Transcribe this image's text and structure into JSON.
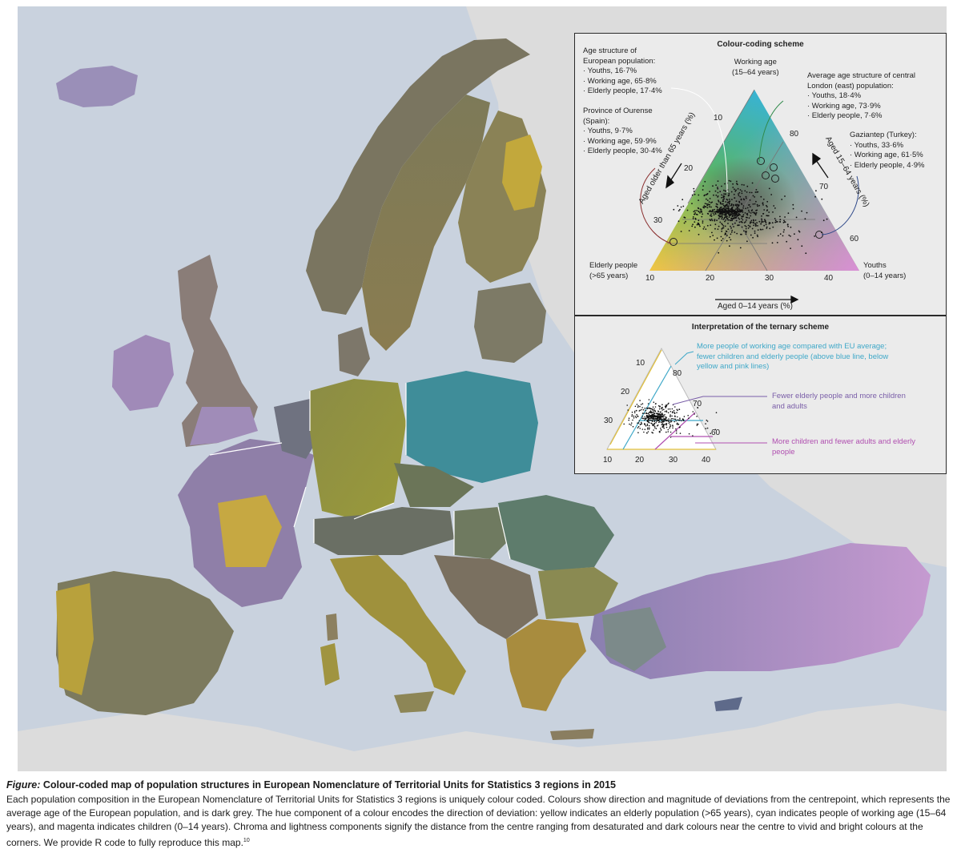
{
  "scheme": {
    "title": "Colour-coding scheme",
    "europe_note": [
      "Age structure of",
      "European population:",
      "· Youths, 16·7%",
      "· Working age, 65·8%",
      "· Elderly people, 17·4%"
    ],
    "ourense_note": [
      "Province of Ourense",
      "(Spain):",
      "· Youths, 9·7%",
      "· Working age, 59·9%",
      "· Elderly people, 30·4%"
    ],
    "london_note": [
      "Average age structure of central",
      "London (east) population:",
      "· Youths, 18·4%",
      "· Working age, 73·9%",
      "· Elderly people, 7·6%"
    ],
    "gaziantep_note": [
      "Gaziantep (Turkey):",
      "· Youths, 33·6%",
      "· Working age, 61·5%",
      "· Elderly people, 4·9%"
    ],
    "corner_top": [
      "Working age",
      "(15–64 years)"
    ],
    "corner_left": [
      "Elderly people",
      "(>65 years)"
    ],
    "corner_right": [
      "Youths",
      "(0–14 years)"
    ],
    "axis_bottom": "Aged 0–14 years (%)",
    "axis_left": "Aged older than 65 years (%)",
    "axis_right": "Aged 15–64 years (%)",
    "ticks_bottom": [
      "10",
      "20",
      "30",
      "40"
    ],
    "ticks_left": [
      "10",
      "20",
      "30"
    ],
    "ticks_right": [
      "80",
      "70",
      "60"
    ]
  },
  "interpretation": {
    "title": "Interpretation of the ternary scheme",
    "item1": [
      "More people of working age compared with EU average;",
      "fewer children and elderly people (above blue line, below",
      "yellow and pink lines)"
    ],
    "item2": [
      "Fewer elderly people and more children",
      "and adults"
    ],
    "item3": [
      "More children and fewer adults and elderly",
      "people"
    ],
    "ticks_bottom": [
      "10",
      "20",
      "30",
      "40"
    ],
    "ticks_left": [
      "10",
      "20",
      "30"
    ],
    "ticks_right": [
      "80",
      "70",
      "60"
    ],
    "color_item1": "#3fa8c8",
    "color_item2": "#7a5ea8",
    "color_item3": "#b04fb0"
  },
  "caption": {
    "label": "Figure:",
    "title": "Colour-coded map of population structures in European Nomenclature of Territorial Units for Statistics 3 regions in 2015",
    "body": "Each population composition in the European Nomenclature of Territorial Units for Statistics 3 regions is uniquely colour coded. Colours show direction and magnitude of deviations from the centrepoint, which represents the average age of the European population, and is dark grey. The hue component of a colour encodes the direction of deviation: yellow indicates an elderly population (>65 years), cyan indicates people of working age (15–64 years), and magenta indicates children (0–14 years). Chroma and lightness components signify the distance from the centre ranging from desaturated and dark colours near the centre to vivid and bright colours at the corners. We provide R code to fully reproduce this map.",
    "footnote": "10"
  },
  "colors": {
    "sea": "#c9d2de",
    "land_outside": "#dcdcdc",
    "elderly": "#e6c13a",
    "working": "#3aa9b8",
    "youth": "#c889cf",
    "centre": "#5a5a5a"
  }
}
